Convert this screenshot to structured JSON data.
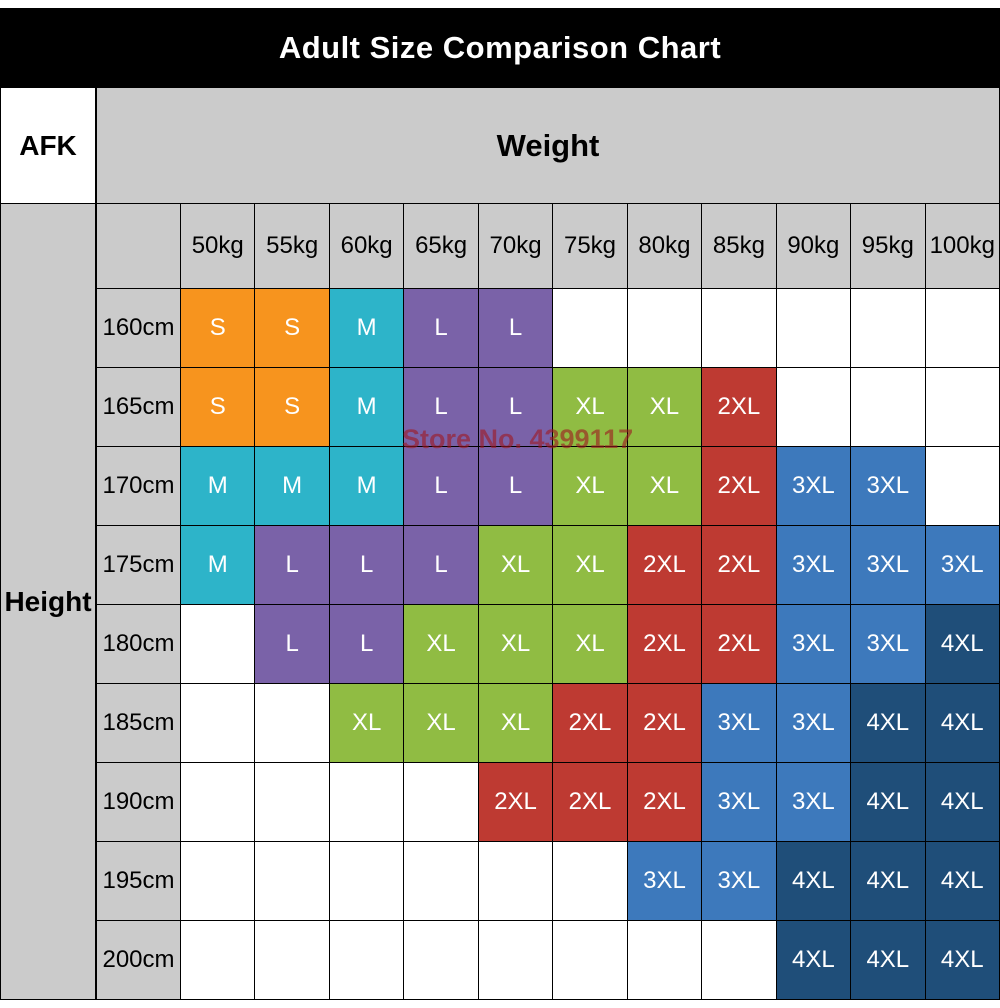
{
  "chart_data": {
    "type": "table",
    "title": "Adult Size Comparison Chart",
    "corner_label": "AFK",
    "weight_axis_label": "Weight",
    "height_axis_label": "Height",
    "watermark": "Store No. 4399117",
    "weights": [
      "50kg",
      "55kg",
      "60kg",
      "65kg",
      "70kg",
      "75kg",
      "80kg",
      "85kg",
      "90kg",
      "95kg",
      "100kg"
    ],
    "heights": [
      "160cm",
      "165cm",
      "170cm",
      "175cm",
      "180cm",
      "185cm",
      "190cm",
      "195cm",
      "200cm"
    ],
    "size_colors": {
      "S": "#f7941e",
      "M": "#2db4c9",
      "L": "#7a62a8",
      "XL": "#90bc43",
      "2XL": "#be3a32",
      "3XL": "#3d79bc",
      "4XL": "#1f4e79"
    },
    "grid": [
      [
        "S",
        "S",
        "M",
        "L",
        "L",
        "",
        "",
        "",
        "",
        "",
        ""
      ],
      [
        "S",
        "S",
        "M",
        "L",
        "L",
        "XL",
        "XL",
        "2XL",
        "",
        "",
        ""
      ],
      [
        "M",
        "M",
        "M",
        "L",
        "L",
        "XL",
        "XL",
        "2XL",
        "3XL",
        "3XL",
        ""
      ],
      [
        "M",
        "L",
        "L",
        "L",
        "XL",
        "XL",
        "2XL",
        "2XL",
        "3XL",
        "3XL",
        "3XL"
      ],
      [
        "",
        "L",
        "L",
        "XL",
        "XL",
        "XL",
        "2XL",
        "2XL",
        "3XL",
        "3XL",
        "4XL"
      ],
      [
        "",
        "",
        "XL",
        "XL",
        "XL",
        "2XL",
        "2XL",
        "3XL",
        "3XL",
        "4XL",
        "4XL"
      ],
      [
        "",
        "",
        "",
        "",
        "2XL",
        "2XL",
        "2XL",
        "3XL",
        "3XL",
        "4XL",
        "4XL"
      ],
      [
        "",
        "",
        "",
        "",
        "",
        "",
        "3XL",
        "3XL",
        "4XL",
        "4XL",
        "4XL"
      ],
      [
        "",
        "",
        "",
        "",
        "",
        "",
        "",
        "",
        "4XL",
        "4XL",
        "4XL"
      ]
    ],
    "layout": {
      "grid_lines": "black 1px",
      "header_bg": "#cbcbcb",
      "banner_bg": "#000000",
      "empty_cell_bg": "#ffffff"
    }
  }
}
